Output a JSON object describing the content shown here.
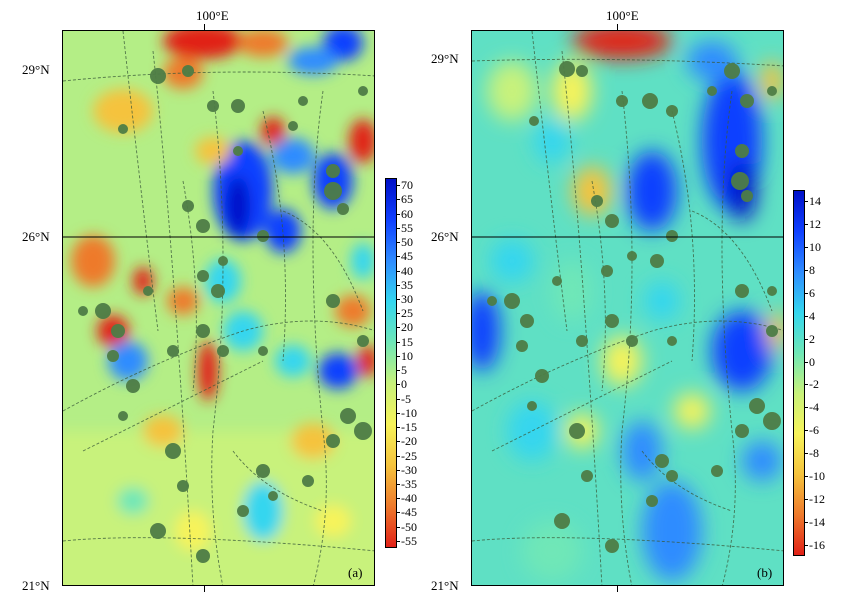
{
  "panels": [
    {
      "id": "a",
      "label": "(a)",
      "lon_label": "100°E",
      "lat_labels": [
        "29°N",
        "26°N",
        "21°N"
      ],
      "colorbar": {
        "ticks": [
          "70",
          "65",
          "60",
          "55",
          "50",
          "45",
          "40",
          "35",
          "30",
          "25",
          "20",
          "15",
          "10",
          "5",
          "0",
          "-5",
          "-10",
          "-15",
          "-20",
          "-25",
          "-30",
          "-35",
          "-40",
          "-45",
          "-50",
          "-55"
        ],
        "colors": [
          "#0010c8",
          "#1040ff",
          "#2f8cff",
          "#34d6ef",
          "#6fe7b7",
          "#c8f27b",
          "#f7f35a",
          "#f5c33d",
          "#ee7a2c",
          "#e12117"
        ]
      }
    },
    {
      "id": "b",
      "label": "(b)",
      "lon_label": "100°E",
      "lat_labels": [
        "29°N",
        "26°N",
        "21°N"
      ],
      "colorbar": {
        "ticks": [
          "14",
          "12",
          "10",
          "8",
          "6",
          "4",
          "2",
          "0",
          "-2",
          "-4",
          "-6",
          "-8",
          "-10",
          "-12",
          "-14",
          "-16"
        ],
        "colors": [
          "#0010c8",
          "#1040ff",
          "#2f8cff",
          "#34d6ef",
          "#6fe7b7",
          "#c8f27b",
          "#f7f35a",
          "#f5c33d",
          "#ee7a2c",
          "#e12117"
        ]
      }
    }
  ]
}
